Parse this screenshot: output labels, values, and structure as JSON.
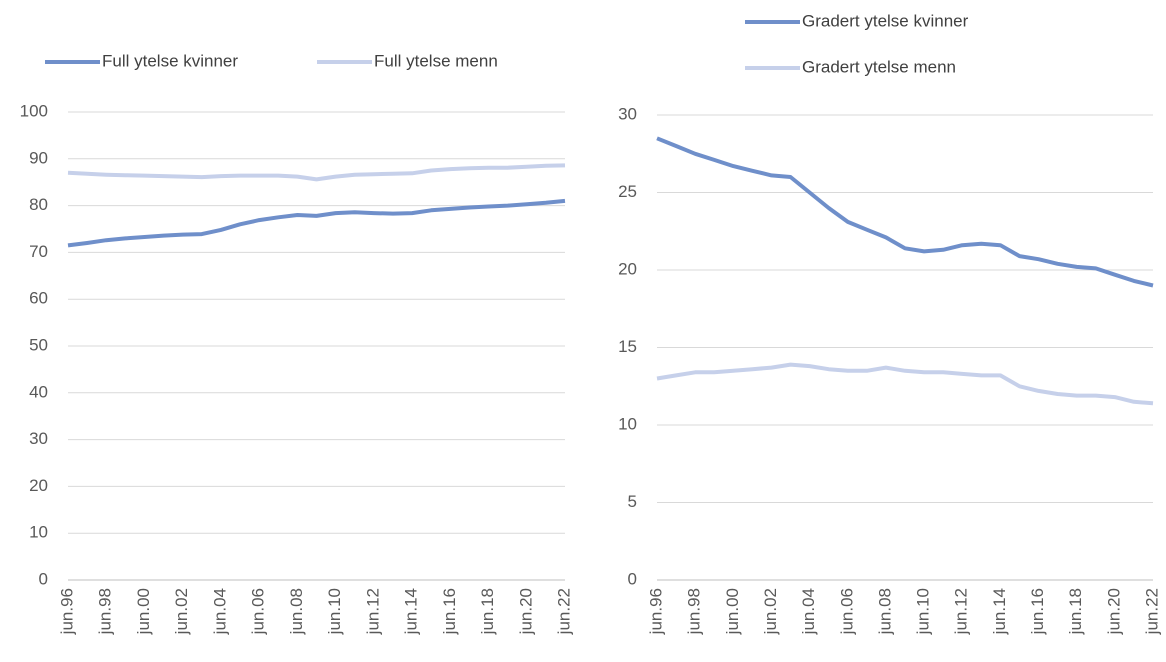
{
  "chart_data": [
    {
      "type": "line",
      "legend": "top",
      "grid": true,
      "categories": [
        "jun.96",
        null,
        "jun.98",
        null,
        "jun.00",
        null,
        "jun.02",
        null,
        "jun.04",
        null,
        "jun.06",
        null,
        "jun.08",
        null,
        "jun.10",
        null,
        "jun.12",
        null,
        "jun.14",
        null,
        "jun.16",
        null,
        "jun.18",
        null,
        "jun.20",
        null,
        "jun.22"
      ],
      "ylim": [
        0,
        100
      ],
      "yticks": [
        0,
        10,
        20,
        30,
        40,
        50,
        60,
        70,
        80,
        90,
        100
      ],
      "series": [
        {
          "name": "Full ytelse kvinner",
          "color": "#6f8fca",
          "values": [
            71.5,
            72,
            72.6,
            73,
            73.3,
            73.6,
            73.8,
            73.9,
            74.8,
            76,
            76.9,
            77.5,
            78,
            77.8,
            78.4,
            78.6,
            78.4,
            78.3,
            78.4,
            79,
            79.3,
            79.6,
            79.8,
            80,
            80.3,
            80.6,
            81
          ]
        },
        {
          "name": "Full ytelse menn",
          "color": "#c6d0ea",
          "values": [
            87,
            86.8,
            86.6,
            86.5,
            86.4,
            86.3,
            86.2,
            86.1,
            86.3,
            86.4,
            86.4,
            86.4,
            86.2,
            85.6,
            86.2,
            86.6,
            86.7,
            86.8,
            86.9,
            87.5,
            87.8,
            88,
            88.1,
            88.1,
            88.3,
            88.5,
            88.6
          ]
        }
      ]
    },
    {
      "type": "line",
      "legend": "top",
      "grid": true,
      "categories": [
        "jun.96",
        null,
        "jun.98",
        null,
        "jun.00",
        null,
        "jun.02",
        null,
        "jun.04",
        null,
        "jun.06",
        null,
        "jun.08",
        null,
        "jun.10",
        null,
        "jun.12",
        null,
        "jun.14",
        null,
        "jun.16",
        null,
        "jun.18",
        null,
        "jun.20",
        null,
        "jun.22"
      ],
      "ylim": [
        0,
        30
      ],
      "yticks": [
        0,
        5,
        10,
        15,
        20,
        25,
        30
      ],
      "series": [
        {
          "name": "Gradert ytelse kvinner",
          "color": "#6f8fca",
          "values": [
            28.5,
            28,
            27.5,
            27.1,
            26.7,
            26.4,
            26.1,
            26,
            25,
            24,
            23.1,
            22.6,
            22.1,
            21.4,
            21.2,
            21.3,
            21.6,
            21.7,
            21.6,
            20.9,
            20.7,
            20.4,
            20.2,
            20.1,
            19.7,
            19.3,
            19
          ]
        },
        {
          "name": "Gradert ytelse menn",
          "color": "#c6d0ea",
          "values": [
            13,
            13.2,
            13.4,
            13.4,
            13.5,
            13.6,
            13.7,
            13.9,
            13.8,
            13.6,
            13.5,
            13.5,
            13.7,
            13.5,
            13.4,
            13.4,
            13.3,
            13.2,
            13.2,
            12.5,
            12.2,
            12,
            11.9,
            11.9,
            11.8,
            11.5,
            11.4
          ]
        }
      ]
    }
  ]
}
